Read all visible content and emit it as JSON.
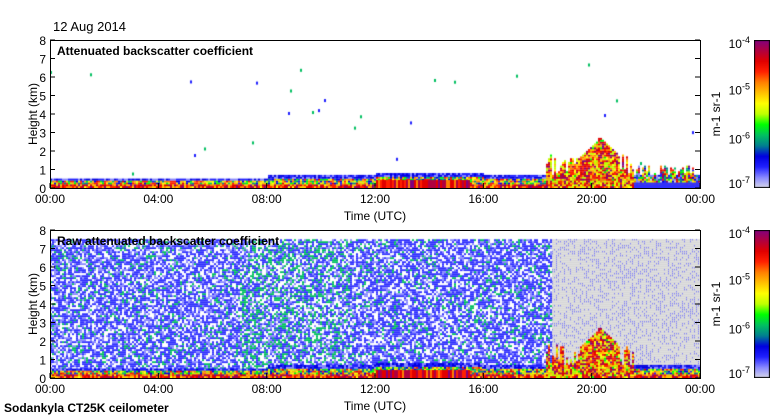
{
  "date": "12 Aug 2014",
  "footer": "Sodankyla CT25K ceilometer",
  "chart_data": [
    {
      "type": "heatmap",
      "title": "Attenuated backscatter coefficient",
      "xlabel": "Time (UTC)",
      "ylabel": "Height (km)",
      "xlim": [
        0,
        24
      ],
      "ylim": [
        0,
        8
      ],
      "xticks": [
        "00:00",
        "04:00",
        "08:00",
        "12:00",
        "16:00",
        "20:00",
        "00:00"
      ],
      "yticks": [
        "0",
        "1",
        "2",
        "3",
        "4",
        "5",
        "6",
        "7",
        "8"
      ],
      "colorbar": {
        "label": "m-1 sr-1",
        "scale": "log",
        "range": [
          1e-07,
          0.0001
        ],
        "ticks": [
          "10^-7",
          "10^-6",
          "10^-5",
          "10^-4"
        ]
      },
      "features": {
        "boundary_layer_top_km": 0.5,
        "cloud_near_hour": 20.5,
        "cloud_top_km": 2.7
      }
    },
    {
      "type": "heatmap",
      "title": "Raw attenuated backscatter coefficient",
      "xlabel": "Time (UTC)",
      "ylabel": "Height (km)",
      "xlim": [
        0,
        24
      ],
      "ylim": [
        0,
        8
      ],
      "xticks": [
        "00:00",
        "04:00",
        "08:00",
        "12:00",
        "16:00",
        "20:00",
        "00:00"
      ],
      "yticks": [
        "0",
        "1",
        "2",
        "3",
        "4",
        "5",
        "6",
        "7",
        "8"
      ],
      "colorbar": {
        "label": "m-1 sr-1",
        "scale": "log",
        "range": [
          1e-07,
          0.0001
        ],
        "ticks": [
          "10^-7",
          "10^-6",
          "10^-5",
          "10^-4"
        ]
      },
      "features": {
        "data_top_km": 7.5,
        "noisy_after_hour": 18.5
      }
    }
  ],
  "colormap": [
    "#d8d8e8",
    "#8888ff",
    "#2020ff",
    "#0000e0",
    "#008090",
    "#00c060",
    "#00ff00",
    "#c0ff00",
    "#ffff00",
    "#ffc000",
    "#ff8000",
    "#ff2000",
    "#e00000",
    "#b00040",
    "#800080"
  ]
}
